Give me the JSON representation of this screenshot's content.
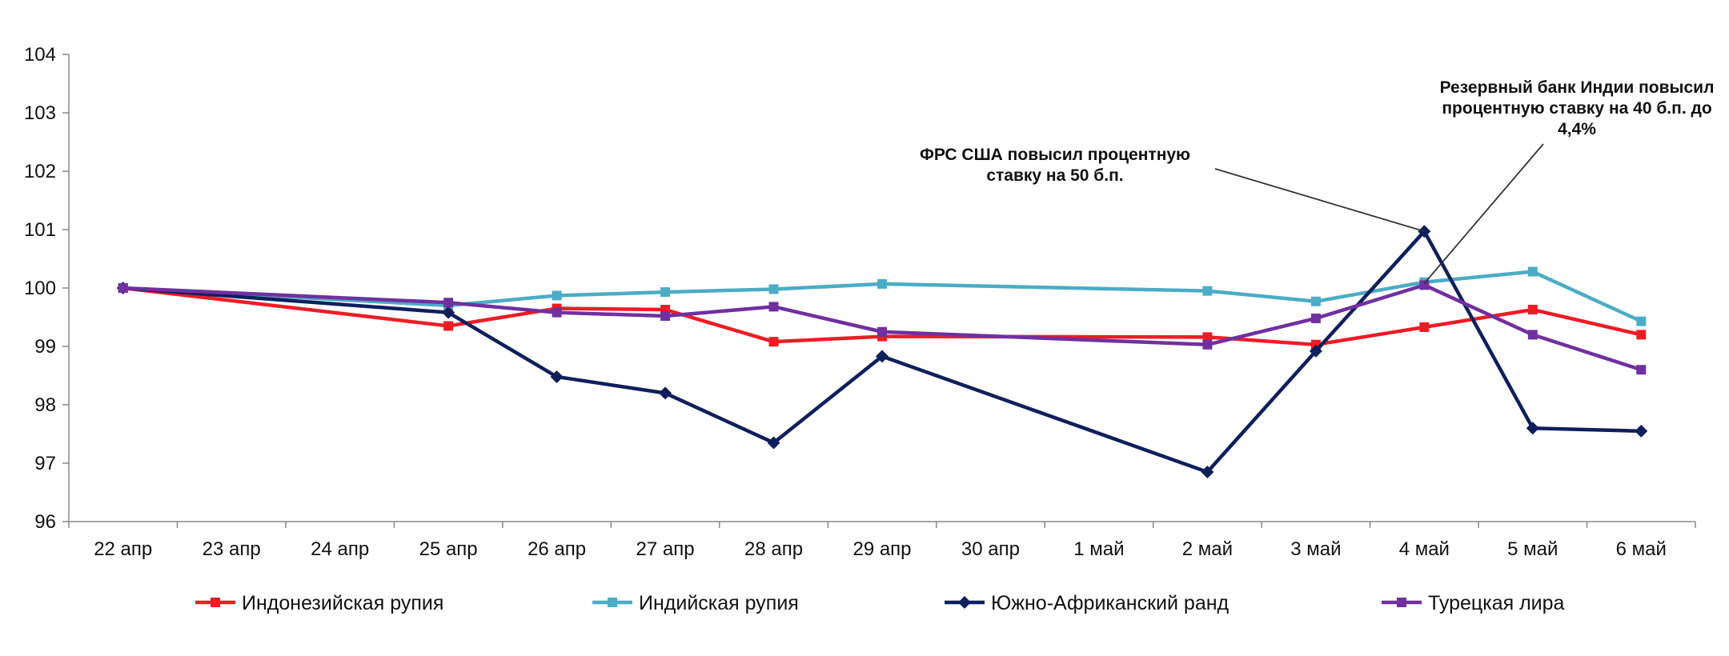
{
  "chart_data": {
    "type": "line",
    "categories": [
      "22 апр",
      "23 апр",
      "24 апр",
      "25 апр",
      "26 апр",
      "27 апр",
      "28 апр",
      "29 апр",
      "30 апр",
      "1 май",
      "2 май",
      "3 май",
      "4 май",
      "5 май",
      "6 май"
    ],
    "ylim": [
      96,
      104
    ],
    "yticks": [
      "96",
      "97",
      "98",
      "99",
      "100",
      "101",
      "102",
      "103",
      "104"
    ],
    "grid": false,
    "legend_position": "bottom",
    "series": [
      {
        "name": "Индонезийская рупия",
        "color": "#ee1c25",
        "marker": "square",
        "values": [
          100,
          null,
          null,
          99.35,
          99.65,
          99.63,
          99.08,
          99.17,
          null,
          null,
          99.16,
          99.03,
          99.33,
          99.63,
          99.2
        ]
      },
      {
        "name": "Индийская рупия",
        "color": "#4bacc6",
        "marker": "square",
        "values": [
          100,
          null,
          null,
          99.7,
          99.87,
          99.93,
          99.98,
          100.07,
          null,
          null,
          99.95,
          99.77,
          100.1,
          100.28,
          99.43
        ]
      },
      {
        "name": "Южно-Африканский ранд",
        "color": "#0f1f5c",
        "marker": "diamond",
        "values": [
          100,
          null,
          null,
          99.58,
          98.48,
          98.2,
          97.35,
          98.83,
          null,
          null,
          96.85,
          98.92,
          100.97,
          97.6,
          97.55
        ]
      },
      {
        "name": "Турецкая лира",
        "color": "#7030a0",
        "marker": "square",
        "values": [
          100,
          null,
          null,
          99.75,
          99.58,
          99.52,
          99.68,
          99.25,
          null,
          null,
          99.03,
          99.48,
          100.05,
          99.2,
          98.6
        ]
      }
    ],
    "annotations": [
      {
        "lines": [
          "ФРС США повысил процентную",
          "ставку на 50 б.п."
        ],
        "target_category": "4 май",
        "target_value": 100.97
      },
      {
        "lines": [
          "Резервный банк Индии повысил",
          "процентную ставку на 40 б.п. до",
          "4,4%"
        ],
        "target_category": "4 май",
        "target_value": 100.08
      }
    ]
  }
}
